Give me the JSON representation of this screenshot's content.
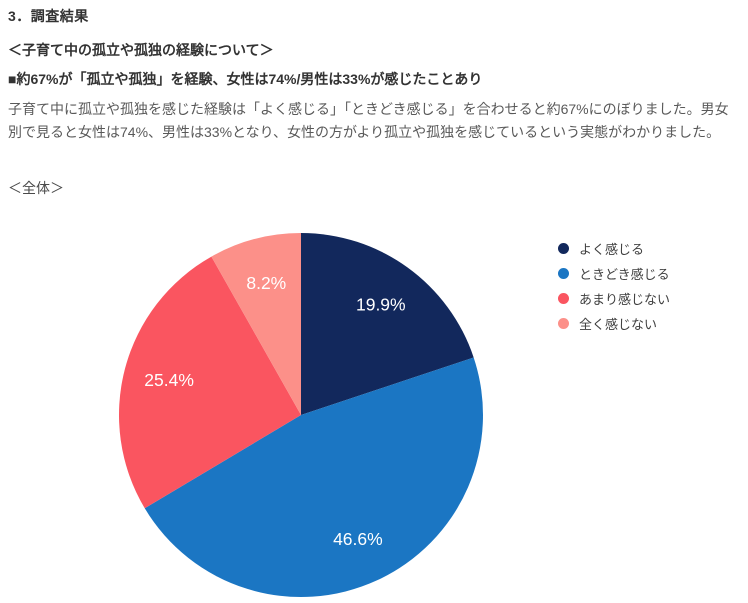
{
  "page": {
    "section_title": "3．調査結果",
    "subsection_title": "＜子育て中の孤立や孤独の経験について＞",
    "headline": "■約67%が「孤立や孤独」を経験、女性は74%/男性は33%が感じたことあり",
    "body": "子育て中に孤立や孤独を感じた経験は「よく感じる」「ときどき感じる」を合わせると約67%にのぼりました。男女別で見ると女性は74%、男性は33%となり、女性の方がより孤立や孤独を感じているという実態がわかりました。"
  },
  "chart_data": {
    "type": "pie",
    "title": "＜全体＞",
    "labels": [
      "よく感じる",
      "ときどき感じる",
      "あまり感じない",
      "全く感じない"
    ],
    "values": [
      19.9,
      46.6,
      25.4,
      8.2
    ],
    "value_labels": [
      "19.9%",
      "46.6%",
      "25.4%",
      "8.2%"
    ],
    "colors": [
      "#12285C",
      "#1B76C3",
      "#FA5560",
      "#FC9089"
    ],
    "start_angle_deg": 0,
    "direction": "clockwise",
    "legend_position": "right",
    "data_label_color": "#FFFFFF",
    "grid": false
  }
}
